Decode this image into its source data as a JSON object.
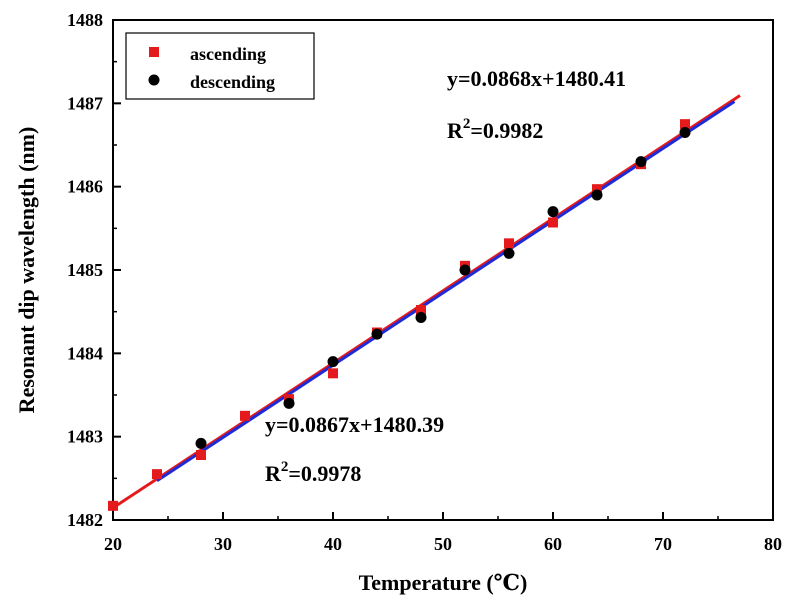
{
  "chart_data": {
    "type": "scatter",
    "xlabel": "Temperature (℃)",
    "ylabel": "Resonant dip wavelength (nm)",
    "xlim": [
      20,
      80
    ],
    "ylim": [
      1482,
      1488
    ],
    "xticks": [
      "20",
      "30",
      "40",
      "50",
      "60",
      "70",
      "80"
    ],
    "yticks": [
      "1482",
      "1483",
      "1484",
      "1485",
      "1486",
      "1487",
      "1488"
    ],
    "legend_position": "top-left",
    "grid": false,
    "series": [
      {
        "name": "ascending",
        "marker": "square",
        "color": "#e41a1c",
        "x": [
          20,
          24,
          28,
          32,
          36,
          40,
          44,
          48,
          52,
          56,
          60,
          64,
          68,
          72
        ],
        "y": [
          1482.17,
          1482.55,
          1482.78,
          1483.25,
          1483.45,
          1483.76,
          1484.25,
          1484.52,
          1485.05,
          1485.32,
          1485.57,
          1485.97,
          1486.27,
          1486.75
        ],
        "fit": {
          "slope": 0.0868,
          "intercept": 1480.41,
          "x_range": [
            20,
            77
          ],
          "color": "#e41a1c"
        }
      },
      {
        "name": "descending",
        "marker": "circle",
        "color": "#000000",
        "x": [
          28,
          36,
          40,
          44,
          48,
          52,
          56,
          60,
          64,
          68,
          72
        ],
        "y": [
          1482.92,
          1483.4,
          1483.9,
          1484.23,
          1484.43,
          1485.0,
          1485.2,
          1485.7,
          1485.9,
          1486.3,
          1486.65
        ],
        "fit": {
          "slope": 0.0867,
          "intercept": 1480.39,
          "x_range": [
            24,
            76.5
          ],
          "color": "#1f2bd6"
        }
      }
    ],
    "annotations": [
      {
        "id": "asc-eq",
        "equation": "y=0.0868x+1480.41",
        "r2_prefix": "R",
        "r2_exp": "2",
        "r2_value": "=0.9982"
      },
      {
        "id": "desc-eq",
        "equation": "y=0.0867x+1480.39",
        "r2_prefix": "R",
        "r2_exp": "2",
        "r2_value": "=0.9978"
      }
    ]
  }
}
